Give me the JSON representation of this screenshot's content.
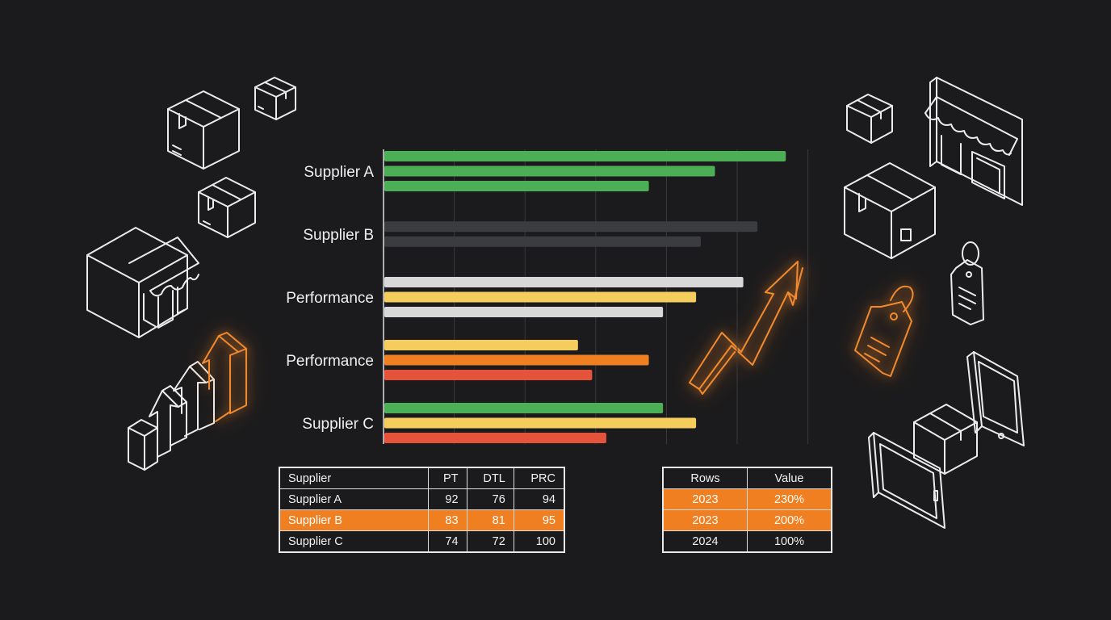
{
  "chart_data": {
    "type": "bar",
    "orientation": "horizontal",
    "grid": true,
    "xlim": [
      0,
      100
    ],
    "categories": [
      "Supplier A",
      "Supplier B",
      "Performance",
      "Performance",
      "Supplier C"
    ],
    "groups": [
      {
        "category": "Supplier A",
        "bars": [
          {
            "value": 85,
            "color": "#4caf56"
          },
          {
            "value": 70,
            "color": "#4caf56"
          },
          {
            "value": 56,
            "color": "#4caf56"
          }
        ]
      },
      {
        "category": "Supplier B",
        "bars": [
          {
            "value": 79,
            "color": "#3b3c40"
          },
          {
            "value": 67,
            "color": "#3b3c40"
          }
        ]
      },
      {
        "category": "Performance",
        "bars": [
          {
            "value": 76,
            "color": "#d8d8d8"
          },
          {
            "value": 66,
            "color": "#f5cd5c"
          },
          {
            "value": 59,
            "color": "#d8d8d8"
          }
        ]
      },
      {
        "category": "Performance",
        "bars": [
          {
            "value": 41,
            "color": "#f5cd5c"
          },
          {
            "value": 56,
            "color": "#f07f22"
          },
          {
            "value": 44,
            "color": "#e5533b"
          }
        ]
      },
      {
        "category": "Supplier C",
        "bars": [
          {
            "value": 59,
            "color": "#4caf56"
          },
          {
            "value": 66,
            "color": "#f5cd5c"
          },
          {
            "value": 47,
            "color": "#e5533b"
          }
        ]
      }
    ]
  },
  "supplier_table": {
    "headers": [
      "Supplier",
      "PT",
      "DTL",
      "PRC"
    ],
    "rows": [
      {
        "cells": [
          "Supplier A",
          "92",
          "76",
          "94"
        ],
        "highlight": false
      },
      {
        "cells": [
          "Supplier B",
          "83",
          "81",
          "95"
        ],
        "highlight": true
      },
      {
        "cells": [
          "Supplier C",
          "74",
          "72",
          "100"
        ],
        "highlight": false
      }
    ]
  },
  "year_table": {
    "headers": [
      "Rows",
      "Value"
    ],
    "rows": [
      {
        "cells": [
          "2023",
          "230%"
        ],
        "highlight": true
      },
      {
        "cells": [
          "2023",
          "200%"
        ],
        "highlight": true
      },
      {
        "cells": [
          "2024",
          "100%"
        ],
        "highlight": false
      }
    ]
  },
  "decor_icons": [
    "box-icon",
    "storefront-icon",
    "growth-arrows-icon",
    "trend-arrow-icon",
    "price-tag-icon",
    "tablet-icon",
    "phone-icon"
  ],
  "colors": {
    "background": "#1b1b1d",
    "accent": "#f07f22",
    "green": "#4caf56",
    "yellow": "#f5cd5c",
    "red": "#e5533b",
    "gray": "#d8d8d8",
    "dark": "#3b3c40"
  }
}
